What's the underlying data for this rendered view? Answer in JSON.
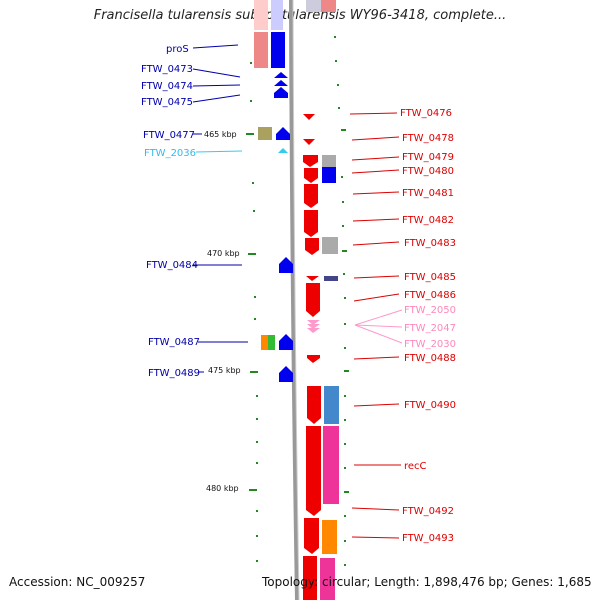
{
  "title": "Francisella tularensis subsp. tularensis WY96-3418, complete...",
  "footer": {
    "accession": "Accession: NC_009257",
    "topology": "Topology: circular; Length: 1,898,476 bp; Genes: 1,685"
  },
  "scale_labels": [
    "465 kbp",
    "470 kbp",
    "475 kbp",
    "480 kbp"
  ],
  "colors": {
    "forward": "#0000ee",
    "reverse": "#ee0000",
    "trna": "#33ccee",
    "ncrna": "#ff99cc",
    "backbone": "#999999",
    "ticks": "#228822"
  },
  "left_labels": [
    "proS",
    "FTW_0473",
    "FTW_0474",
    "FTW_0475",
    "FTW_0477",
    "FTW_2036",
    "FTW_0484",
    "FTW_0487",
    "FTW_0489"
  ],
  "right_labels": [
    "FTW_0476",
    "FTW_0478",
    "FTW_0479",
    "FTW_0480",
    "FTW_0481",
    "FTW_0482",
    "FTW_0483",
    "FTW_0485",
    "FTW_0486",
    "FTW_2050",
    "FTW_2047",
    "FTW_2030",
    "FTW_0488",
    "FTW_0490",
    "recC",
    "FTW_0492",
    "FTW_0493"
  ]
}
